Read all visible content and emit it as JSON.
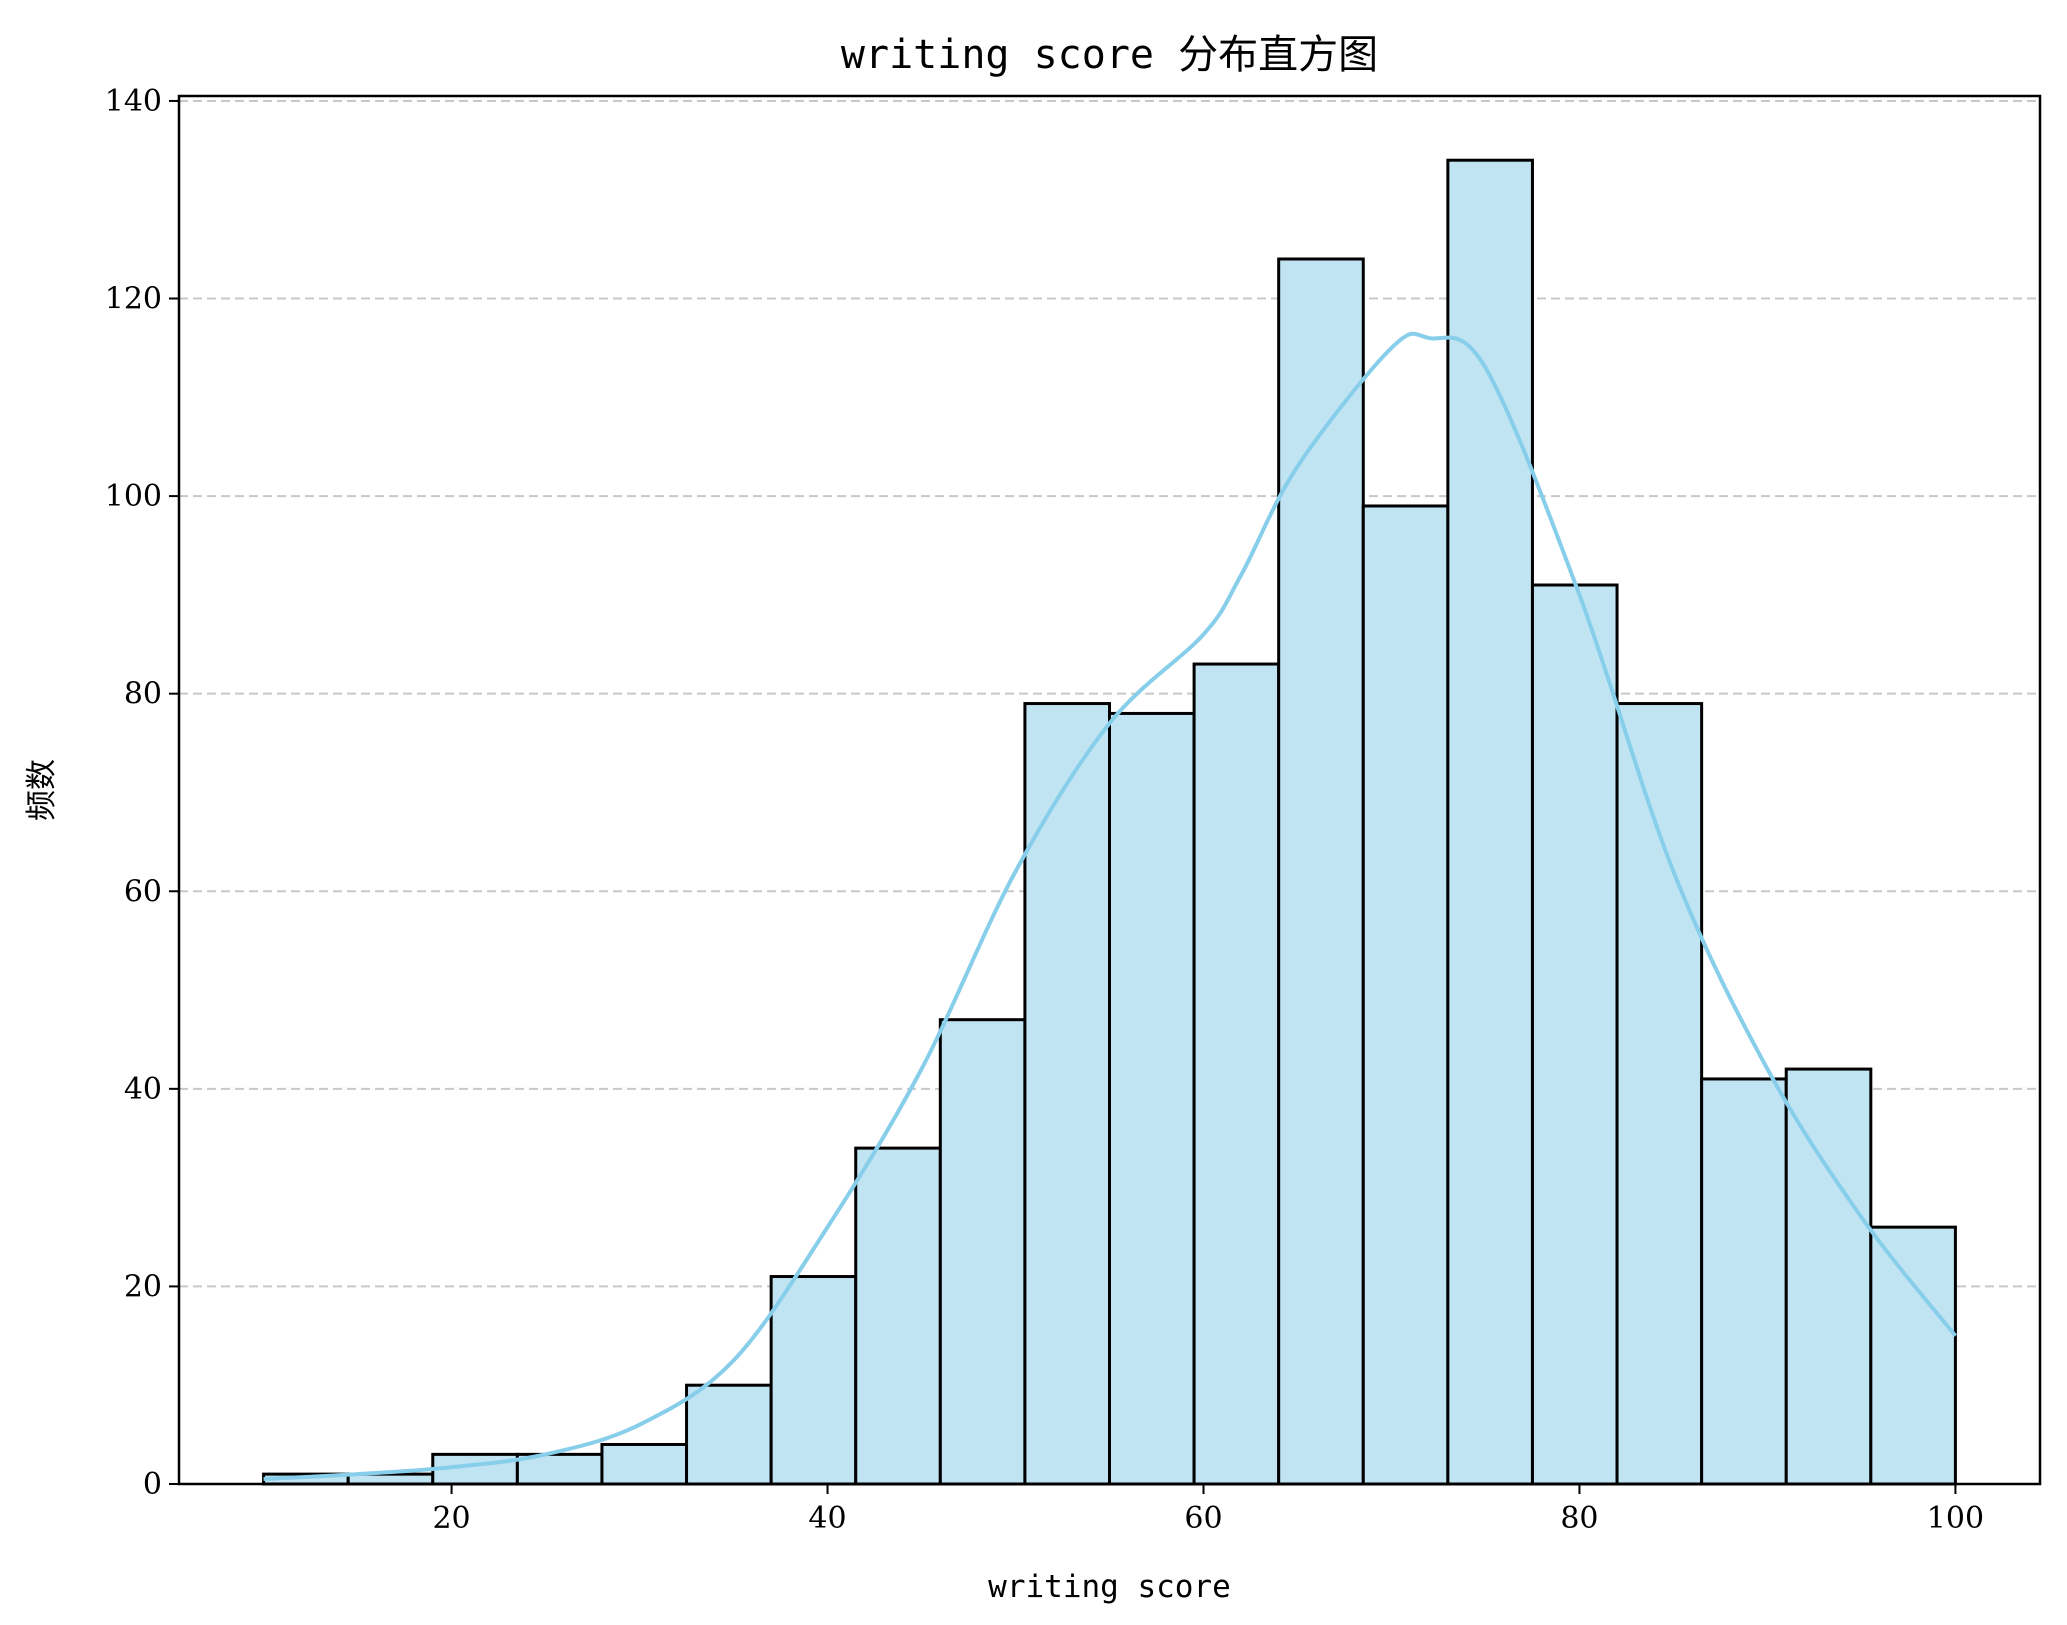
{
  "chart_data": {
    "type": "histogram",
    "title": "writing score 分布直方图",
    "xlabel": "writing score",
    "ylabel": "频数",
    "xlim": [
      5.5,
      104.5
    ],
    "ylim": [
      0,
      140.5
    ],
    "x_ticks": [
      20,
      40,
      60,
      80,
      100
    ],
    "y_ticks": [
      0,
      20,
      40,
      60,
      80,
      100,
      120,
      140
    ],
    "grid": {
      "axis": "y",
      "style": "dashed",
      "color": "#c8c8c8"
    },
    "bar_color": "#c1e4f3",
    "bar_edge_color": "#000000",
    "kde_color": "#87ceeb",
    "bin_edges": [
      10,
      14.5,
      19,
      23.5,
      28,
      32.5,
      37,
      41.5,
      46,
      50.5,
      55,
      59.5,
      64,
      68.5,
      73,
      77.5,
      82,
      86.5,
      91,
      95.5,
      100
    ],
    "counts": [
      1,
      1,
      3,
      3,
      4,
      10,
      21,
      34,
      47,
      79,
      78,
      83,
      124,
      99,
      134,
      91,
      79,
      41,
      42,
      26
    ],
    "kde": {
      "x": [
        10,
        15,
        20,
        25,
        30,
        35,
        40,
        45,
        50,
        55,
        60,
        62,
        65,
        70,
        72,
        75,
        80,
        85,
        90,
        95,
        100
      ],
      "y": [
        0.5,
        1,
        1.7,
        3,
        6,
        12.5,
        26,
        42,
        62,
        77,
        86,
        92,
        103,
        115,
        116,
        113,
        90,
        62,
        42,
        27,
        15
      ]
    }
  }
}
